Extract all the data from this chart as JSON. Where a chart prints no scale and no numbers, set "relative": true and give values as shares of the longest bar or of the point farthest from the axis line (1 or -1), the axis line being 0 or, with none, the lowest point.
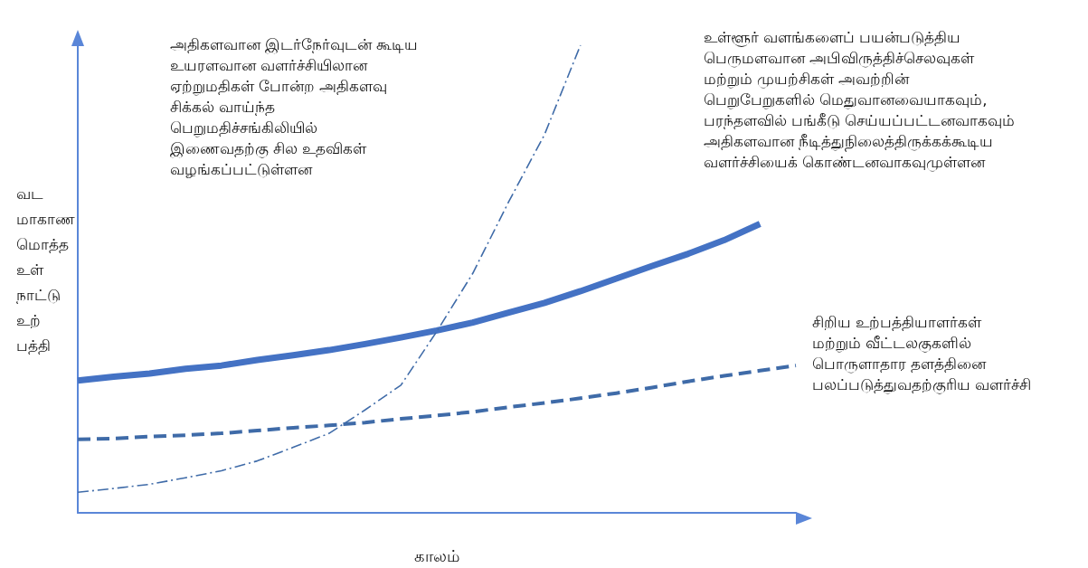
{
  "chart_data": {
    "type": "line",
    "relative": true,
    "xlabel": "காலம்",
    "ylabel": "வட மாகாண மொத்த உள் நாட்டு உற் பத்தி",
    "categories": [
      null,
      null,
      null,
      null,
      null,
      null,
      null,
      null,
      null,
      null,
      null,
      null,
      null,
      null,
      null,
      null,
      null,
      null,
      null,
      null,
      null
    ],
    "series": [
      {
        "color": "#4472c4",
        "line_style": "solid",
        "values": [
          0.283,
          0.291,
          0.298,
          0.308,
          0.315,
          0.327,
          0.337,
          0.348,
          0.361,
          0.375,
          0.39,
          0.407,
          0.428,
          0.449,
          0.474,
          0.501,
          0.528,
          0.554,
          0.583,
          0.618,
          null
        ]
      },
      {
        "color": "#3f6ba8",
        "line_style": "dashed",
        "values": [
          0.157,
          0.159,
          0.163,
          0.166,
          0.17,
          0.176,
          0.182,
          0.187,
          0.193,
          0.201,
          0.208,
          0.216,
          0.226,
          0.235,
          0.245,
          0.256,
          0.268,
          0.281,
          0.293,
          0.304,
          0.315
        ]
      },
      {
        "color": "#3f6ba8",
        "line_style": "dashdot",
        "values": [
          0.044,
          0.052,
          0.061,
          0.075,
          0.09,
          0.111,
          0.14,
          0.17,
          0.22,
          0.273,
          0.388,
          0.512,
          0.665,
          0.809,
          1,
          null,
          null,
          null,
          null,
          null,
          null
        ]
      }
    ],
    "annotations": [
      "அதிகளவான இடர்நேர்வுடன் கூடிய\nஉயரளவான வளர்ச்சியிலான\nஏற்றுமதிகள் போன்ற அதிகளவு\nசிக்கல் வாய்ந்த\nபெறுமதிச்சங்கிலியில்\nஇணைவதற்கு சில உதவிகள்\nவழங்கப்பட்டுள்ளன",
      "உள்ளூர் வளங்களைப் பயன்படுத்திய\nபெருமளவான அபிவிருத்திச்செலவுகள்\nமற்றும் முயற்சிகள் அவற்றின்\nபெறுபேறுகளில் மெதுவானவையாகவும்,\nபரந்தளவில் பங்கீடு செய்யப்பட்டனவாகவும்\nஅதிகளவான நீடித்துநிலைத்திருக்கக்கூடிய\nவளர்ச்சியைக் கொண்டனவாகவுமுள்ளன",
      "சிறிய உற்பத்தியாளர்கள்\nமற்றும் வீட்டலகுகளில்\nபொருளாதார தளத்தினை\nபலப்படுத்துவதற்குரிய வளர்ச்சி"
    ],
    "grid": false,
    "marker": "none"
  }
}
